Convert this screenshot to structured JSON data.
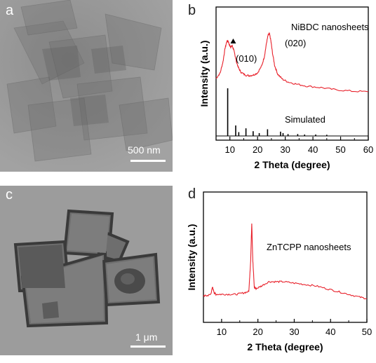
{
  "panels": {
    "a": {
      "letter": "a",
      "scalebar": "500 nm"
    },
    "b": {
      "letter": "b"
    },
    "c": {
      "letter": "c",
      "scalebar": "1 μm"
    },
    "d": {
      "letter": "d"
    }
  },
  "colors": {
    "experimental": "#e8202a",
    "simulated": "#000000"
  },
  "chart_data": [
    {
      "type": "line",
      "panel": "b",
      "xlabel": "2 Theta (degree)",
      "ylabel": "Intensity (a.u.)",
      "xlim": [
        5,
        60
      ],
      "xticks": [
        10,
        20,
        30,
        40,
        50,
        60
      ],
      "annotations": [
        "(010)",
        "(020)",
        "Simulated"
      ],
      "series": [
        {
          "name": "NiBDC nanosheets",
          "x": [
            5,
            6.5,
            7.5,
            8.3,
            8.9,
            9.3,
            9.8,
            10.3,
            10.8,
            11.3,
            11.8,
            12.3,
            13,
            14,
            15.5,
            17,
            18.5,
            20,
            21.5,
            22.5,
            23.2,
            23.8,
            24.3,
            24.8,
            25.4,
            26.2,
            27.3,
            29,
            31,
            34,
            38,
            43,
            48,
            54,
            60
          ],
          "y": [
            0.38,
            0.46,
            0.62,
            0.82,
            0.91,
            0.92,
            0.86,
            0.83,
            0.85,
            0.8,
            0.72,
            0.63,
            0.54,
            0.47,
            0.43,
            0.42,
            0.43,
            0.46,
            0.56,
            0.7,
            0.88,
            1.0,
            1.02,
            0.92,
            0.74,
            0.56,
            0.44,
            0.37,
            0.33,
            0.3,
            0.27,
            0.25,
            0.22,
            0.2,
            0.19
          ]
        },
        {
          "name": "Simulated",
          "sticks": [
            {
              "x": 9.2,
              "h": 1.0
            },
            {
              "x": 12.1,
              "h": 0.22
            },
            {
              "x": 13.2,
              "h": 0.08
            },
            {
              "x": 15.8,
              "h": 0.16
            },
            {
              "x": 18.4,
              "h": 0.1
            },
            {
              "x": 20.6,
              "h": 0.06
            },
            {
              "x": 23.6,
              "h": 0.14
            },
            {
              "x": 28.3,
              "h": 0.09
            },
            {
              "x": 29.2,
              "h": 0.06
            },
            {
              "x": 31.0,
              "h": 0.04
            },
            {
              "x": 34.5,
              "h": 0.04
            },
            {
              "x": 37.0,
              "h": 0.03
            },
            {
              "x": 41.0,
              "h": 0.03
            },
            {
              "x": 45.0,
              "h": 0.025
            }
          ]
        }
      ]
    },
    {
      "type": "line",
      "panel": "d",
      "xlabel": "2 Theta (degree)",
      "ylabel": "Intensity (a.u.)",
      "xlim": [
        5,
        50
      ],
      "xticks": [
        10,
        20,
        30,
        40,
        50
      ],
      "series": [
        {
          "name": "ZnTCPP nanosheets",
          "x": [
            5,
            6,
            7,
            7.5,
            8,
            8.5,
            10,
            12,
            14,
            16,
            17.5,
            18,
            18.3,
            18.6,
            19,
            19.5,
            21,
            23,
            25,
            27,
            30,
            33,
            36,
            39,
            42,
            45,
            48,
            50
          ],
          "y": [
            0.1,
            0.1,
            0.11,
            0.16,
            0.12,
            0.11,
            0.11,
            0.11,
            0.11,
            0.12,
            0.13,
            0.35,
            0.62,
            0.35,
            0.16,
            0.15,
            0.17,
            0.2,
            0.2,
            0.2,
            0.19,
            0.18,
            0.17,
            0.15,
            0.13,
            0.11,
            0.09,
            0.08
          ]
        }
      ]
    }
  ]
}
